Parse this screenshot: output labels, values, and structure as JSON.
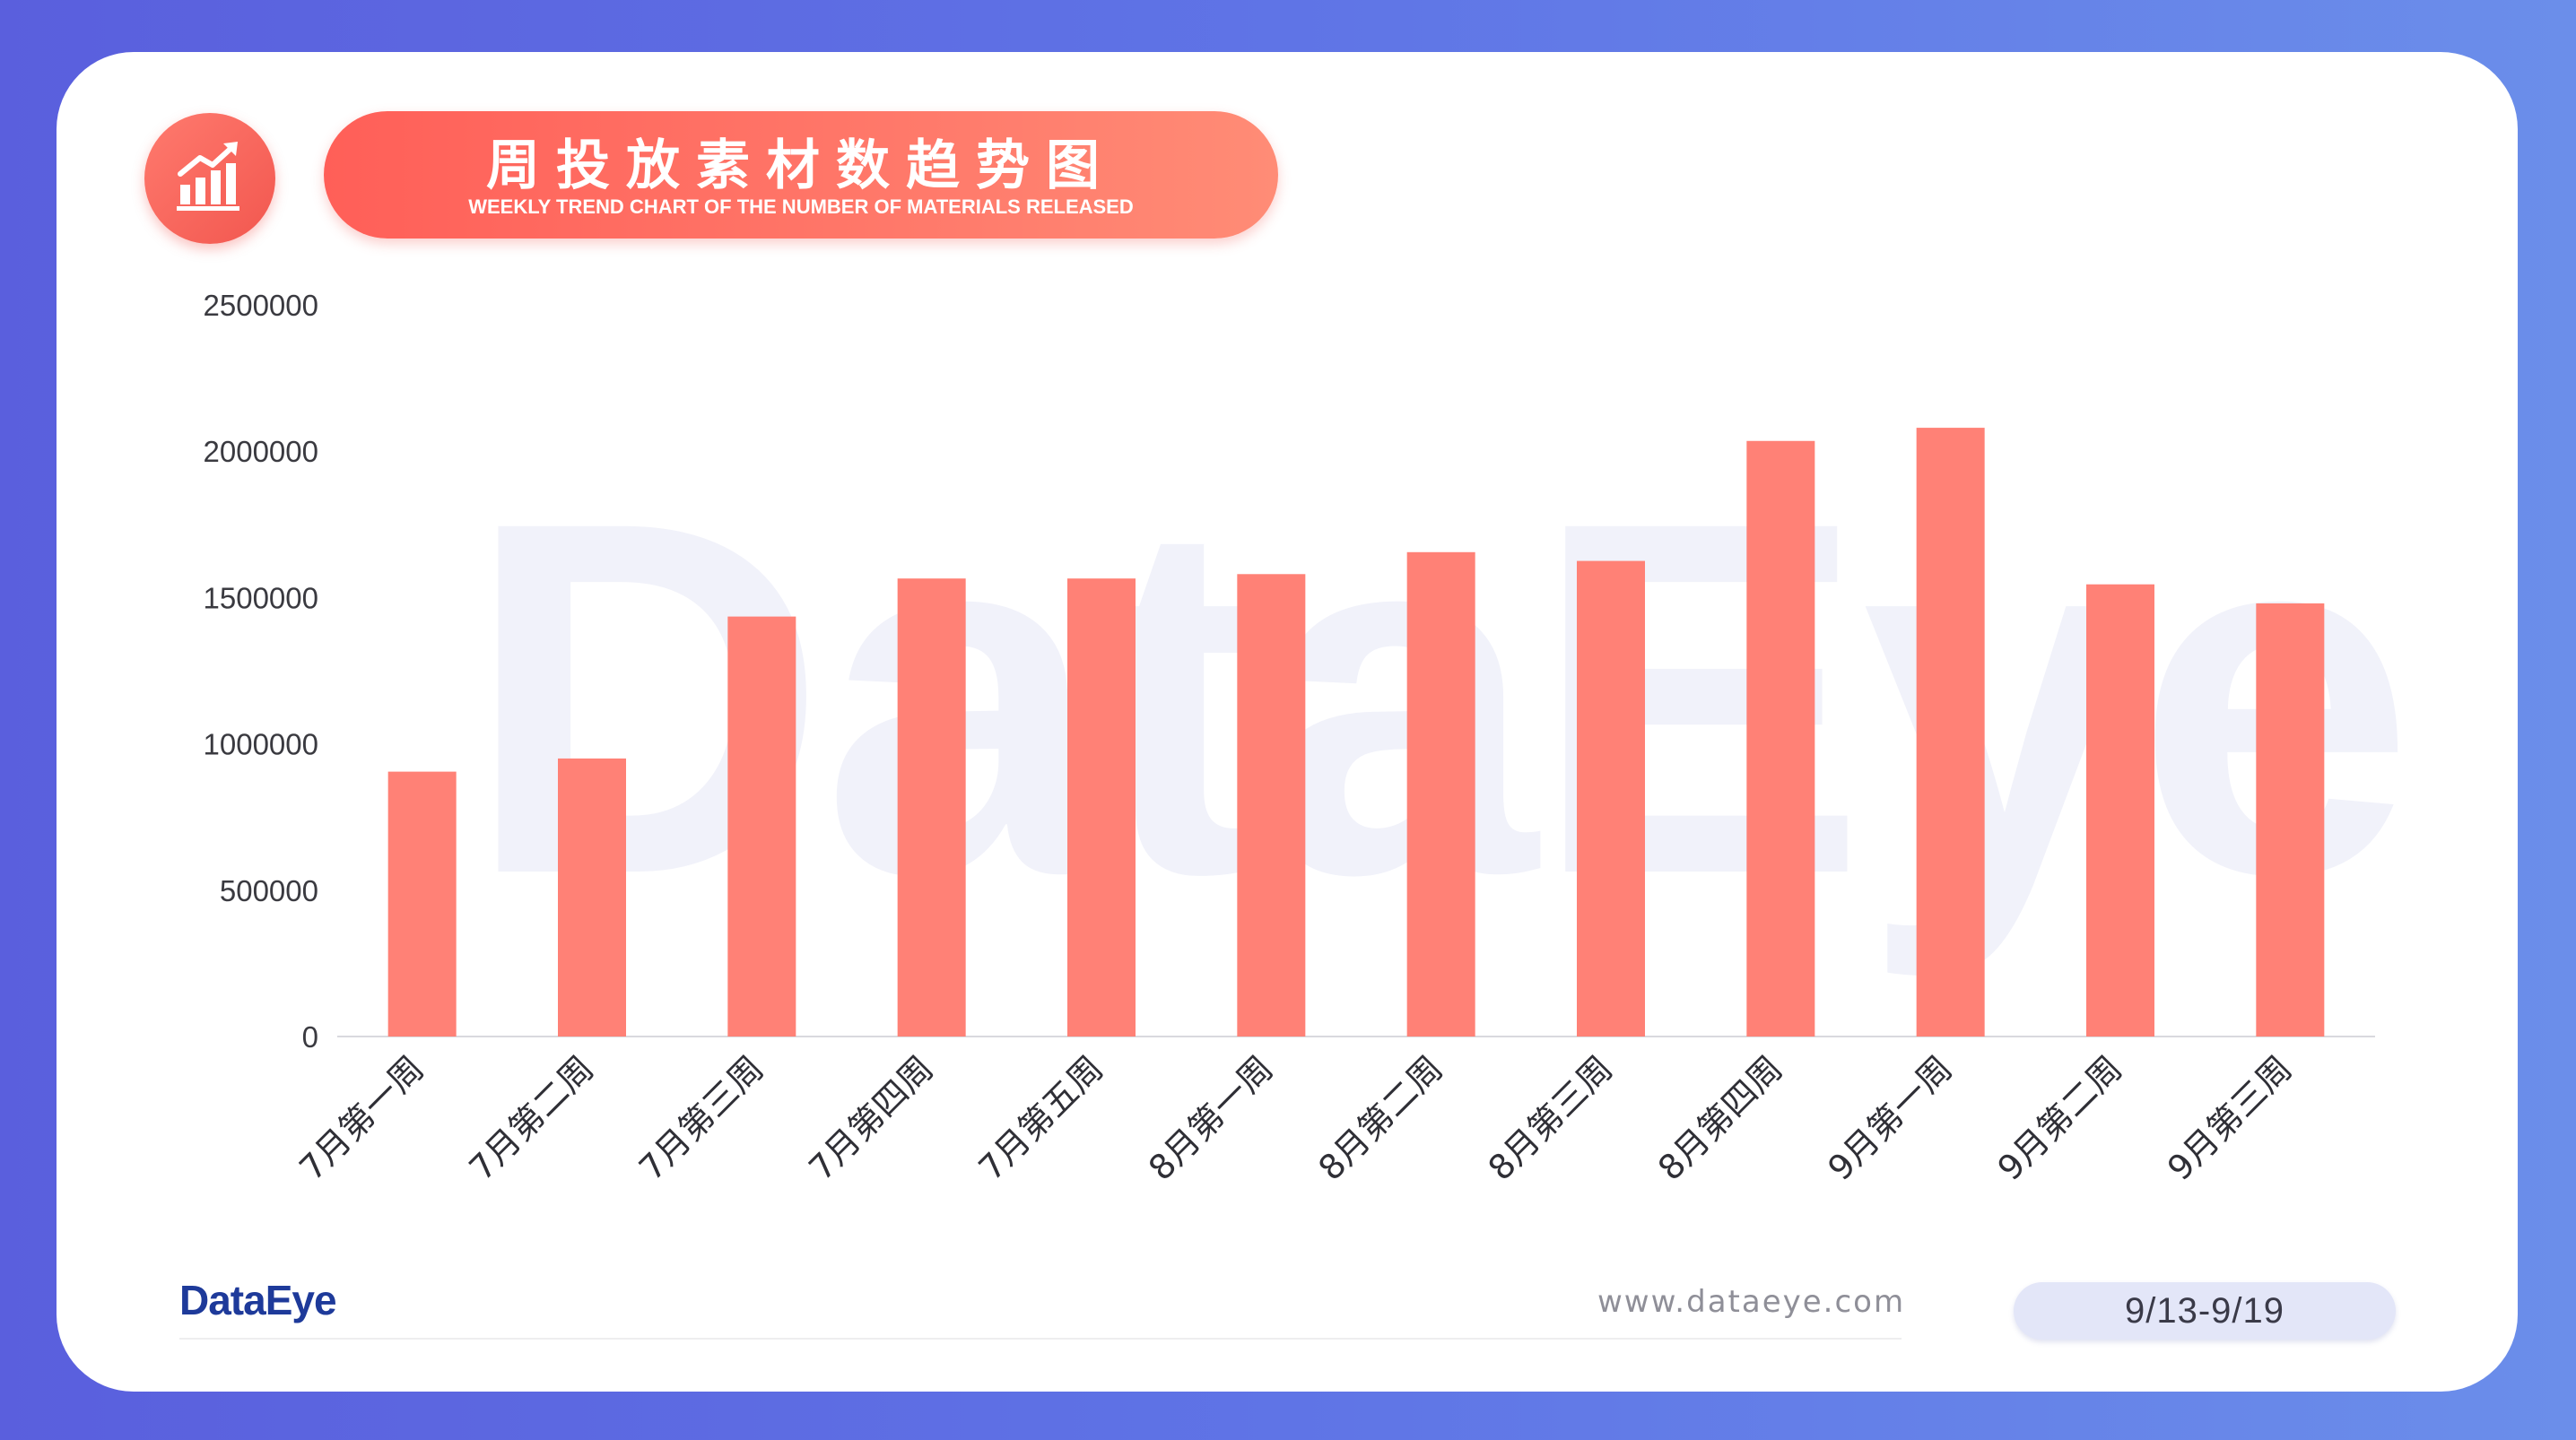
{
  "header": {
    "title": "周投放素材数趋势图",
    "subtitle": "WEEKLY TREND CHART OF THE NUMBER OF MATERIALS RELEASED",
    "icon": "bar-chart-trend-icon"
  },
  "watermark": "DataEye",
  "chart_data": {
    "type": "bar",
    "categories": [
      "7月第一周",
      "7月第二周",
      "7月第三周",
      "7月第四周",
      "7月第五周",
      "8月第一周",
      "8月第二周",
      "8月第三周",
      "8月第四周",
      "9月第一周",
      "9月第二周",
      "9月第三周"
    ],
    "values": [
      905000,
      950000,
      1435000,
      1565000,
      1565000,
      1580000,
      1655000,
      1625000,
      2035000,
      2080000,
      1545000,
      1480000
    ],
    "ylim": [
      0,
      2500000
    ],
    "yticks": [
      0,
      500000,
      1000000,
      1500000,
      2000000,
      2500000
    ],
    "ytick_labels": [
      "0",
      "500000",
      "1000000",
      "1500000",
      "2000000",
      "2500000"
    ],
    "bar_color": "#ff8176",
    "grid": false,
    "title": "",
    "xlabel": "",
    "ylabel": ""
  },
  "footer": {
    "logo": "DataEye",
    "url": "www.dataeye.com",
    "date_range": "9/13-9/19"
  },
  "colors": {
    "accent": "#ff5f58",
    "logo": "#1e3a9a",
    "background": "#5f74e6"
  }
}
